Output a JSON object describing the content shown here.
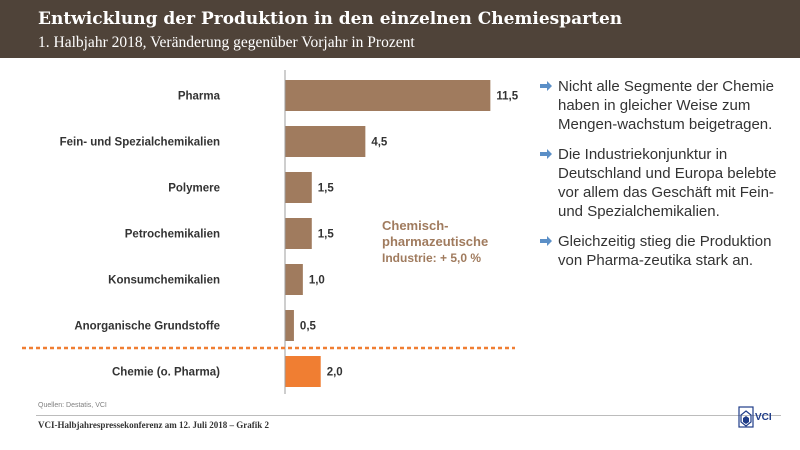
{
  "header": {
    "title": "Entwicklung der Produktion in den einzelnen Chemiesparten",
    "subtitle": "1. Halbjahr 2018, Veränderung gegenüber Vorjahr in Prozent"
  },
  "chart_data": {
    "type": "bar",
    "orientation": "horizontal",
    "categories": [
      "Pharma",
      "Fein- und Spezialchemikalien",
      "Polymere",
      "Petrochemikalien",
      "Konsumchemikalien",
      "Anorganische Grundstoffe",
      "Chemie (o. Pharma)"
    ],
    "values": [
      11.5,
      4.5,
      1.5,
      1.5,
      1.0,
      0.5,
      2.0
    ],
    "value_labels": [
      "11,5",
      "4,5",
      "1,5",
      "1,5",
      "1,0",
      "0,5",
      "2,0"
    ],
    "colors": [
      "#a07b5e",
      "#a07b5e",
      "#a07b5e",
      "#a07b5e",
      "#a07b5e",
      "#a07b5e",
      "#f07e32"
    ],
    "xlim": [
      0,
      14
    ],
    "grid": false,
    "annotation": {
      "line1": "Chemisch-",
      "line2": "pharmazeutische",
      "line3": "Industrie: + 5,0 %"
    }
  },
  "bullets": [
    "Nicht alle Segmente der Chemie haben in gleicher Weise zum Mengen-wachstum beigetragen.",
    "Die Industriekonjunktur in Deutschland und Europa belebte vor allem das Geschäft mit Fein- und Spezialchemikalien.",
    "Gleichzeitig stieg die Produktion von Pharma-zeutika stark an."
  ],
  "colors": {
    "header_bg": "#4f4339",
    "bar": "#a07b5e",
    "highlight": "#f07e32",
    "bullet_arrow": "#5b8fc7"
  },
  "footer": {
    "source": "Quellen: Destatis, VCI",
    "caption": "VCI-Halbjahrespressekonferenz am 12. Juli 2018 – Grafik 2",
    "logo_text": "VCI"
  }
}
